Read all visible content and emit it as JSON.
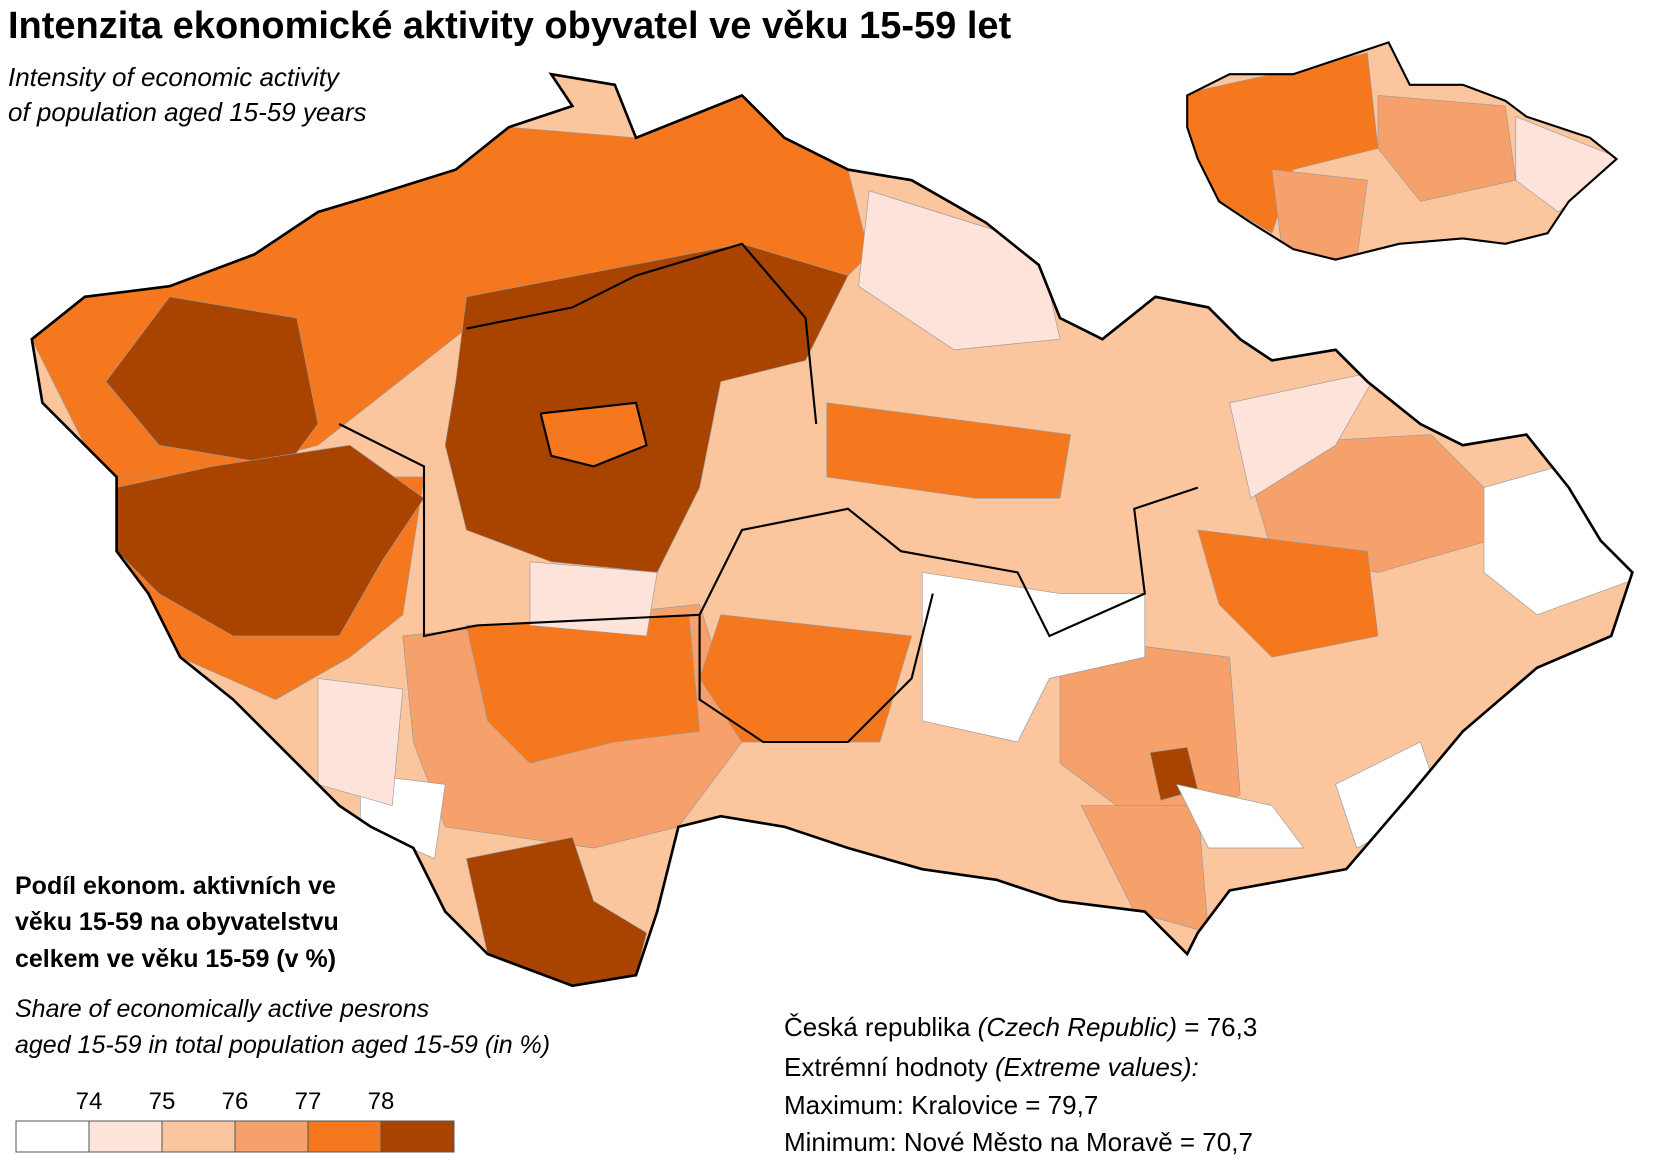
{
  "header": {
    "title": "Intenzita ekonomické aktivity obyvatel ve věku 15-59 let",
    "subtitle": [
      "Intensity of economic activity",
      "of population aged 15-59 years"
    ]
  },
  "legend": {
    "title": [
      "Podíl ekonom. aktivních ve",
      "věku 15-59 na obyvatelstvu",
      "celkem ve věku 15-59 (v %)"
    ],
    "subtitle": [
      "Share of economically active pesrons",
      "aged 15-59 in total population aged 15-59 (in %)"
    ],
    "breaks": [
      74,
      75,
      76,
      77,
      78
    ],
    "colors": [
      "#ffffff",
      "#fde3da",
      "#fbc59e",
      "#f6a06c",
      "#f6781e",
      "#a84300"
    ]
  },
  "summary": {
    "national": [
      "Česká republika ",
      "(Czech Republic)",
      " = 76,3"
    ],
    "extremes_heading": [
      "Extrémní hodnoty ",
      "(Extreme values):"
    ],
    "maximum": "Maximum: Kralovice = 79,7",
    "minimum": "Minimum: Nové Město na Moravě = 70,7"
  }
}
